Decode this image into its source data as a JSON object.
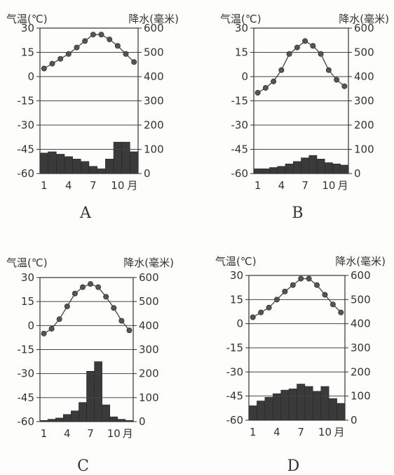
{
  "chart_data": [
    {
      "type": "bar+line",
      "title": "A",
      "temp_label": "气温(℃)",
      "precip_label": "降水(毫米)",
      "x_ticks": [
        "1",
        "4",
        "7",
        "10",
        "月"
      ],
      "months": [
        1,
        2,
        3,
        4,
        5,
        6,
        7,
        8,
        9,
        10,
        11,
        12
      ],
      "temperature": [
        5,
        8,
        11,
        14,
        18,
        22,
        26,
        26,
        23,
        19,
        14,
        9
      ],
      "precipitation": [
        85,
        90,
        80,
        70,
        60,
        50,
        30,
        20,
        60,
        130,
        130,
        90
      ],
      "temp_ylim": [
        -60,
        30
      ],
      "temp_ticks": [
        "30",
        "15",
        "0",
        "-15",
        "-30",
        "-45",
        "-60"
      ],
      "precip_ylim": [
        0,
        600
      ],
      "precip_ticks": [
        "600",
        "500",
        "400",
        "300",
        "200",
        "100",
        "0"
      ],
      "grid": true
    },
    {
      "type": "bar+line",
      "title": "B",
      "temp_label": "气温(℃)",
      "precip_label": "降水(毫米)",
      "x_ticks": [
        "1",
        "4",
        "7",
        "10",
        "月"
      ],
      "months": [
        1,
        2,
        3,
        4,
        5,
        6,
        7,
        8,
        9,
        10,
        11,
        12
      ],
      "temperature": [
        -10,
        -7,
        -3,
        4,
        14,
        18,
        22,
        19,
        14,
        4,
        -2,
        -6
      ],
      "precipitation": [
        20,
        20,
        25,
        30,
        40,
        50,
        65,
        75,
        60,
        45,
        40,
        35
      ],
      "temp_ylim": [
        -60,
        30
      ],
      "temp_ticks": [
        "30",
        "15",
        "0",
        "-15",
        "-30",
        "-45",
        "-60"
      ],
      "precip_ylim": [
        0,
        600
      ],
      "precip_ticks": [
        "600",
        "500",
        "400",
        "300",
        "200",
        "100",
        "0"
      ],
      "grid": true
    },
    {
      "type": "bar+line",
      "title": "C",
      "temp_label": "气温(℃)",
      "precip_label": "降水(毫米)",
      "x_ticks": [
        "1",
        "4",
        "7",
        "10",
        "月"
      ],
      "months": [
        1,
        2,
        3,
        4,
        5,
        6,
        7,
        8,
        9,
        10,
        11,
        12
      ],
      "temperature": [
        -5,
        -2,
        4,
        12,
        20,
        24,
        26,
        24,
        18,
        11,
        3,
        -3
      ],
      "precipitation": [
        5,
        10,
        15,
        30,
        45,
        80,
        210,
        250,
        70,
        20,
        10,
        5
      ],
      "temp_ylim": [
        -60,
        30
      ],
      "temp_ticks": [
        "30",
        "15",
        "0",
        "-15",
        "-30",
        "-45",
        "-60"
      ],
      "precip_ylim": [
        0,
        600
      ],
      "precip_ticks": [
        "600",
        "500",
        "400",
        "300",
        "200",
        "100",
        "0"
      ],
      "grid": true
    },
    {
      "type": "bar+line",
      "title": "D",
      "temp_label": "气温(℃)",
      "precip_label": "降水(毫米)",
      "x_ticks": [
        "1",
        "4",
        "7",
        "10",
        "月"
      ],
      "months": [
        1,
        2,
        3,
        4,
        5,
        6,
        7,
        8,
        9,
        10,
        11,
        12
      ],
      "temperature": [
        4,
        7,
        10,
        15,
        20,
        24,
        28,
        28,
        24,
        18,
        12,
        7
      ],
      "precipitation": [
        60,
        80,
        95,
        110,
        125,
        130,
        150,
        140,
        120,
        140,
        90,
        70
      ],
      "temp_ylim": [
        -60,
        30
      ],
      "temp_ticks": [
        "30",
        "15",
        "0",
        "-15",
        "-30",
        "-45",
        "-60"
      ],
      "precip_ylim": [
        0,
        600
      ],
      "precip_ticks": [
        "600",
        "500",
        "400",
        "300",
        "200",
        "100",
        "0"
      ],
      "grid": true
    }
  ]
}
